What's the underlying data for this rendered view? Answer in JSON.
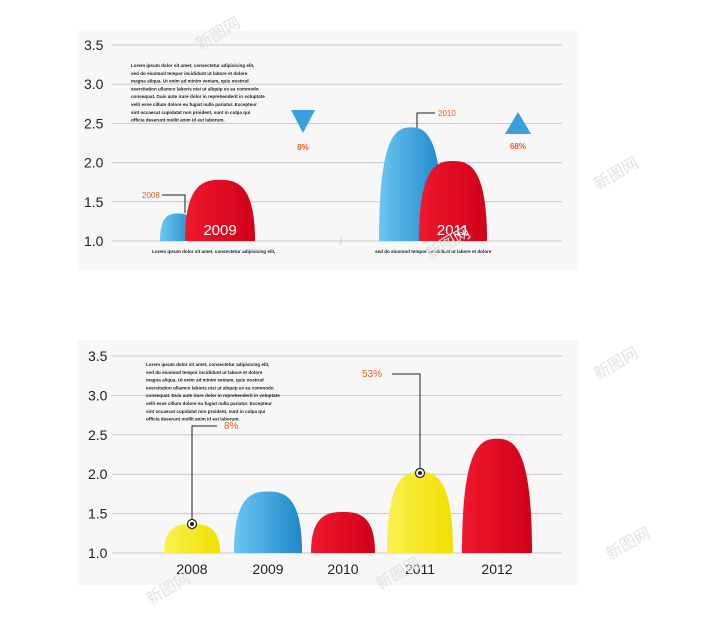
{
  "colors": {
    "blue": "#3aa0dc",
    "red": "#e2001a",
    "yellow": "#f5ea14",
    "orange": "#e8601c",
    "grid": "#c9c9c9",
    "panel": "#f7f7f7"
  },
  "watermark": "新图网",
  "chart_data": [
    {
      "type": "area",
      "yticks": [
        "3.5",
        "3.0",
        "2.5",
        "2.0",
        "1.5",
        "1.0"
      ],
      "ylim": [
        1.0,
        3.5
      ],
      "grid": true,
      "body_text": [
        "Lorem ipsum dolor sit amet, consectetur adipisicing elit,",
        "sed do eiusmod tempor incididunt ut labore et dolore",
        "magna aliqua. Ut enim ad minim veniam, quis  nostrud",
        "exercitation ullamco laboris nisi ut aliquip ex ea commodo",
        "consequat. Duis aute irure dolor in reprehenderit in voluptate",
        "velit esse cillum dolore eu fugiat nulla pariatur. Excepteur",
        "sint occaecat cupidatat non proident, sunt in culpa qui",
        "officia deserunt mollit anim id est laborum."
      ],
      "groups": [
        {
          "year_label": "2009",
          "prev_label": "2008",
          "prev_value": 1.35,
          "value": 1.78,
          "caption": "Lorem ipsum dolor sit amet, consectetur adipisicing elit,",
          "change": "8%",
          "direction": "down"
        },
        {
          "year_label": "2011",
          "prev_label": "2010",
          "prev_value": 2.45,
          "value": 2.02,
          "caption": "sed do eiusmod tempor incididunt ut labore et dolore",
          "change": "68%",
          "direction": "up"
        }
      ]
    },
    {
      "type": "area",
      "yticks": [
        "3.5",
        "3.0",
        "2.5",
        "2.0",
        "1.5",
        "1.0"
      ],
      "ylim": [
        1.0,
        3.5
      ],
      "grid": true,
      "categories": [
        "2008",
        "2009",
        "2010",
        "2011",
        "2012"
      ],
      "values": [
        1.37,
        1.78,
        1.52,
        2.03,
        2.45
      ],
      "bar_colors": [
        "#f5ea14",
        "#3aa0dc",
        "#e2001a",
        "#f5ea14",
        "#e2001a"
      ],
      "body_text": [
        "Lorem ipsum dolor sit amet, consectetur adipisicing elit,",
        "sed do eiusmod tempor incididunt ut labore et dolore",
        "magna aliqua. Ut enim ad minim veniam, quis  nostrud",
        "exercitation ullamco laboris nisi ut aliquip ex ea commodo",
        "consequat. Duis aute irure dolor in reprehenderit in voluptate",
        "velit esse cillum dolore eu fugiat nulla pariatur. Excepteur",
        "sint occaecat cupidatat non proident, sunt in culpa qui",
        "officia deserunt mollit anim id est laborum."
      ],
      "callouts": [
        {
          "category": "2008",
          "label": "8%"
        },
        {
          "category": "2011",
          "label": "53%"
        }
      ]
    }
  ]
}
